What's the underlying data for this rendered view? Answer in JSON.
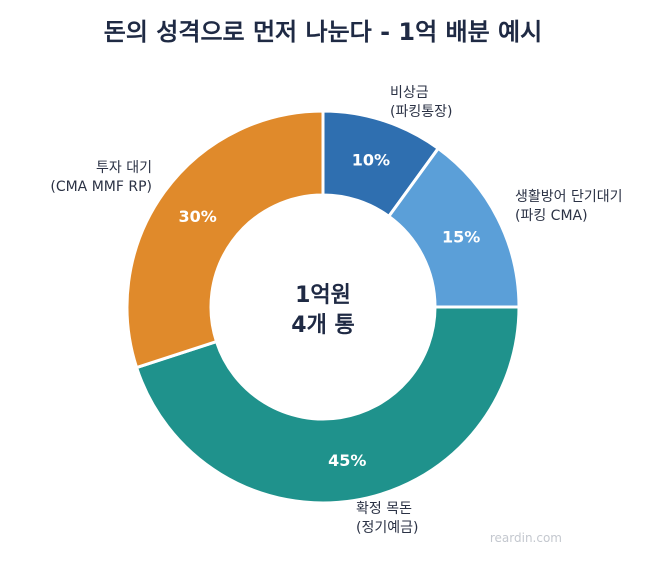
{
  "chart_data": {
    "type": "pie",
    "title": "돈의 성격으로 먼저 나눈다 - 1억 배분 예시",
    "center_label": [
      "1억원",
      "4개 통"
    ],
    "slices": [
      {
        "label": [
          "비상금",
          "(파킹통장)"
        ],
        "value": 10,
        "value_label": "10%",
        "color": "#2f6fb0"
      },
      {
        "label": [
          "생활방어 단기대기",
          "(파킹 CMA)"
        ],
        "value": 15,
        "value_label": "15%",
        "color": "#5b9fd8"
      },
      {
        "label": [
          "확정 목돈",
          "(정기예금)"
        ],
        "value": 45,
        "value_label": "45%",
        "color": "#1f928c"
      },
      {
        "label": [
          "투자 대기",
          "(CMA MMF RP)"
        ],
        "value": 30,
        "value_label": "30%",
        "color": "#e08a2b"
      }
    ],
    "start": "12 o'clock",
    "direction": "clockwise",
    "hole": "donut"
  },
  "watermark": "reardin.com"
}
